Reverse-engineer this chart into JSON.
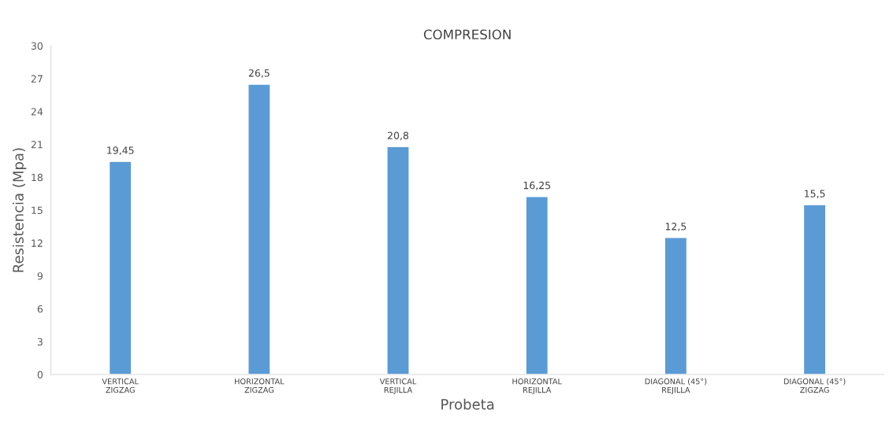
{
  "chart_data": {
    "type": "bar",
    "title": "COMPRESION",
    "xlabel": "Probeta",
    "ylabel": "Resistencia (Mpa)",
    "categories": [
      "VERTICAL\nZIGZAG",
      "HORIZONTAL\nZIGZAG",
      "VERTICAL\nREJILLA",
      "HORIZONTAL\nREJILLA",
      "DIAGONAL (45°)\nREJILLA",
      "DIAGONAL (45°)\nZIGZAG"
    ],
    "values": [
      19.45,
      26.5,
      20.8,
      16.25,
      12.5,
      15.5
    ],
    "value_labels": [
      "19,45",
      "26,5",
      "20,8",
      "16,25",
      "12,5",
      "15,5"
    ],
    "color": "#5b9bd5",
    "ylim": [
      0,
      30
    ],
    "yticks": [
      0,
      3,
      6,
      9,
      12,
      15,
      18,
      21,
      24,
      27,
      30
    ],
    "grid": false,
    "legend": false
  }
}
